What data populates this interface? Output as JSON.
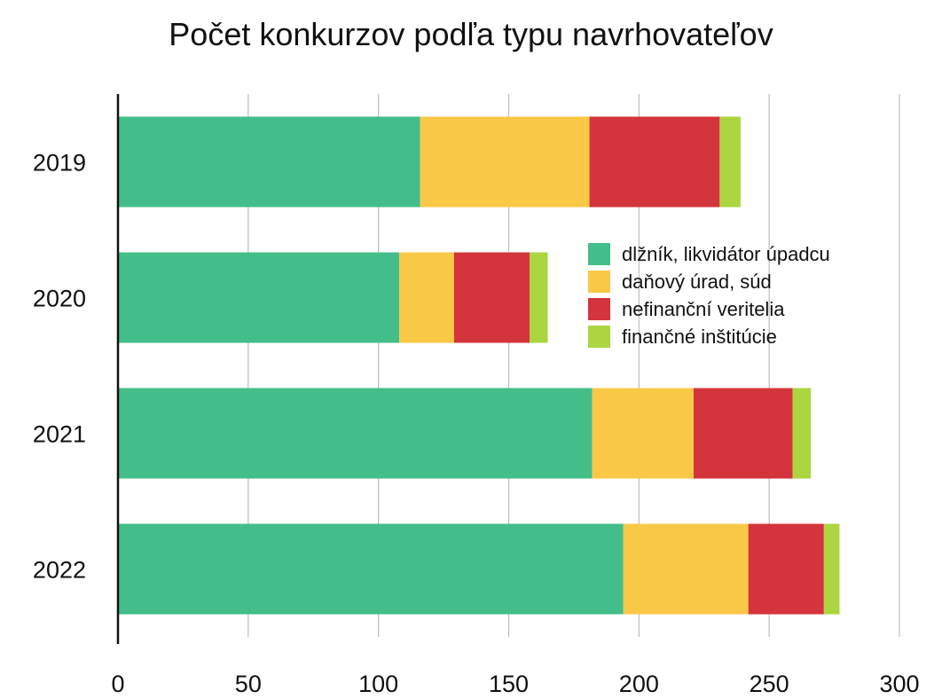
{
  "chart_data": {
    "type": "bar",
    "orientation": "horizontal",
    "stacked": true,
    "title": "Počet konkurzov podľa typu navrhovateľov",
    "categories": [
      "2019",
      "2020",
      "2021",
      "2022"
    ],
    "series": [
      {
        "name": "dlžník, likvidátor úpadcu",
        "color": "#43BE8A",
        "values": [
          116,
          108,
          182,
          194
        ]
      },
      {
        "name": "daňový úrad, súd",
        "color": "#FAC847",
        "values": [
          65,
          21,
          39,
          48
        ]
      },
      {
        "name": "nefinanční veritelia",
        "color": "#D4343B",
        "values": [
          50,
          29,
          38,
          29
        ]
      },
      {
        "name": "finančné inštitúcie",
        "color": "#ADD540",
        "values": [
          8,
          7,
          7,
          6
        ]
      }
    ],
    "xlim": [
      0,
      300
    ],
    "xticks": [
      0,
      50,
      100,
      150,
      200,
      250,
      300
    ],
    "grid": true,
    "legend_position": "right-inside"
  }
}
